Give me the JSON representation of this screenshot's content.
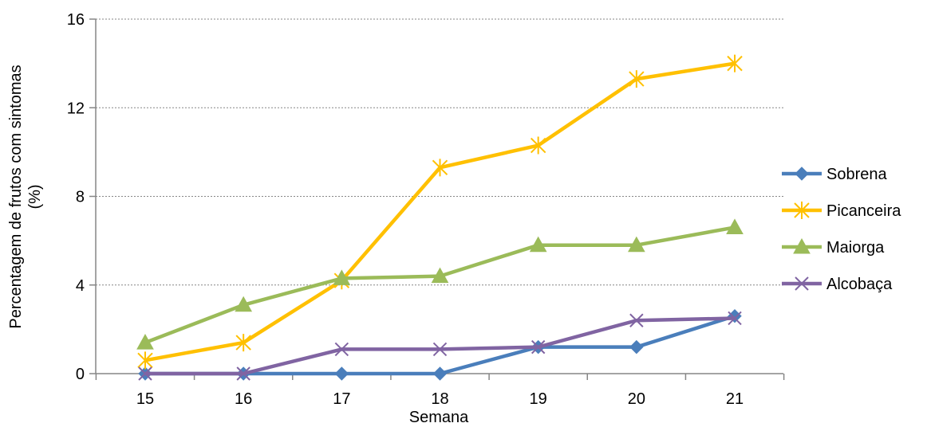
{
  "chart_data": {
    "type": "line",
    "title": "",
    "xlabel": "Semana",
    "ylabel_line1": "Percentagem de frutos com sintomas",
    "ylabel_line2": "(%)",
    "x": [
      15,
      16,
      17,
      18,
      19,
      20,
      21
    ],
    "ylim": [
      0,
      16
    ],
    "yticks": [
      0,
      4,
      8,
      12,
      16
    ],
    "grid": "horizontal dotted",
    "legend_position": "right",
    "series": [
      {
        "name": "Sobrena",
        "color": "#4A7EBB",
        "marker": "diamond",
        "values": [
          0,
          0,
          0,
          0,
          1.2,
          1.2,
          2.6
        ]
      },
      {
        "name": "Picanceira",
        "color": "#FFC000",
        "marker": "star",
        "values": [
          0.6,
          1.4,
          4.2,
          9.3,
          10.3,
          13.3,
          14.0
        ]
      },
      {
        "name": "Maiorga",
        "color": "#9BBB59",
        "marker": "triangle",
        "values": [
          1.4,
          3.1,
          4.3,
          4.4,
          5.8,
          5.8,
          6.6
        ]
      },
      {
        "name": "Alcobaça",
        "color": "#8064A2",
        "marker": "x",
        "values": [
          0,
          0,
          1.1,
          1.1,
          1.2,
          2.4,
          2.5
        ]
      }
    ]
  }
}
